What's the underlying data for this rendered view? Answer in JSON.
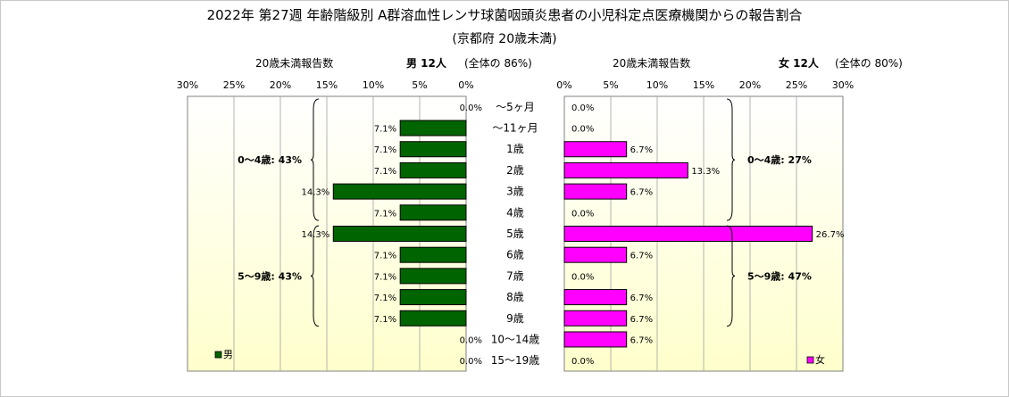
{
  "title": "2022年 第27週  年齢階級別 A群溶血性レンサ球菌咽頭炎患者の小児科定点医療機関からの報告割合",
  "subtitle": "(京都府 20歳未満)",
  "male_header": {
    "axis_title": "20歳未満報告数",
    "count_label": "男  12人",
    "share_label": "(全体の  86%)"
  },
  "female_header": {
    "axis_title": "20歳未満報告数",
    "count_label": "女  12人",
    "share_label": "(全体の  80%)"
  },
  "colors": {
    "male": "#006400",
    "female": "#ff00ff",
    "panel_top": "#ffffff",
    "panel_bottom": "#ffffcc"
  },
  "chart_data": {
    "type": "bar",
    "orientation": "horizontal",
    "layout": "butterfly",
    "categories": [
      "～5ヶ月",
      "～11ヶ月",
      "1歳",
      "2歳",
      "3歳",
      "4歳",
      "5歳",
      "6歳",
      "7歳",
      "8歳",
      "9歳",
      "10～14歳",
      "15～19歳"
    ],
    "x_ticks": [
      "0%",
      "5%",
      "10%",
      "15%",
      "20%",
      "25%",
      "30%"
    ],
    "xlim": [
      0,
      30
    ],
    "series": [
      {
        "name": "男",
        "side": "left",
        "values": [
          0.0,
          7.1,
          7.1,
          7.1,
          14.3,
          7.1,
          14.3,
          7.1,
          7.1,
          7.1,
          7.1,
          0.0,
          0.0
        ],
        "labels": [
          "0.0%",
          "7.1%",
          "7.1%",
          "7.1%",
          "14.3%",
          "7.1%",
          "14.3%",
          "7.1%",
          "7.1%",
          "7.1%",
          "7.1%",
          "0.0%",
          "0.0%"
        ],
        "groups": [
          {
            "label": "0～4歳: 43%",
            "from": 0,
            "to": 5
          },
          {
            "label": "5～9歳: 43%",
            "from": 6,
            "to": 10
          }
        ]
      },
      {
        "name": "女",
        "side": "right",
        "values": [
          0.0,
          0.0,
          6.7,
          13.3,
          6.7,
          0.0,
          26.7,
          6.7,
          0.0,
          6.7,
          6.7,
          6.7,
          0.0
        ],
        "labels": [
          "0.0%",
          "0.0%",
          "6.7%",
          "13.3%",
          "6.7%",
          "0.0%",
          "26.7%",
          "6.7%",
          "0.0%",
          "6.7%",
          "6.7%",
          "6.7%",
          "0.0%"
        ],
        "groups": [
          {
            "label": "0～4歳: 27%",
            "from": 0,
            "to": 5
          },
          {
            "label": "5～9歳: 47%",
            "from": 6,
            "to": 10
          }
        ]
      }
    ],
    "grid": true,
    "legend": "bottom"
  }
}
